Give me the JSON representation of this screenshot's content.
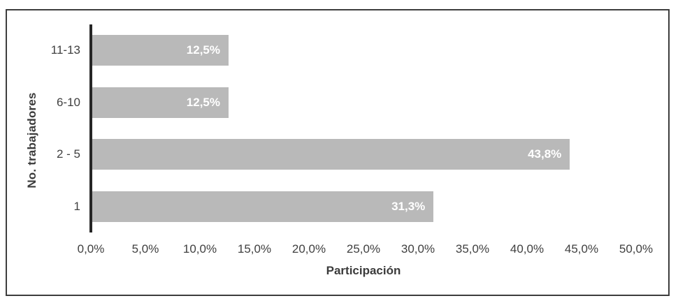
{
  "chart_data": {
    "type": "bar",
    "orientation": "horizontal",
    "title": "",
    "xlabel": "Participación",
    "ylabel": "No. trabajadores",
    "categories": [
      "11-13",
      "6-10",
      "2 - 5",
      "1"
    ],
    "values": [
      12.5,
      12.5,
      43.8,
      31.3
    ],
    "value_labels": [
      "12,5%",
      "12,5%",
      "43,8%",
      "31,3%"
    ],
    "x_ticks": [
      "0,0%",
      "5,0%",
      "10,0%",
      "15,0%",
      "20,0%",
      "25,0%",
      "30,0%",
      "35,0%",
      "40,0%",
      "45,0%",
      "50,0%"
    ],
    "x_tick_values": [
      0,
      5,
      10,
      15,
      20,
      25,
      30,
      35,
      40,
      45,
      50
    ],
    "xlim": [
      0,
      50
    ],
    "grid": false,
    "legend": false,
    "colors": {
      "bar": "#b9b9b9",
      "value_label": "#ffffff",
      "axis_line": "#262626",
      "tick_text": "#404040",
      "frame_border": "#3d3d3d",
      "background": "#ffffff"
    }
  }
}
